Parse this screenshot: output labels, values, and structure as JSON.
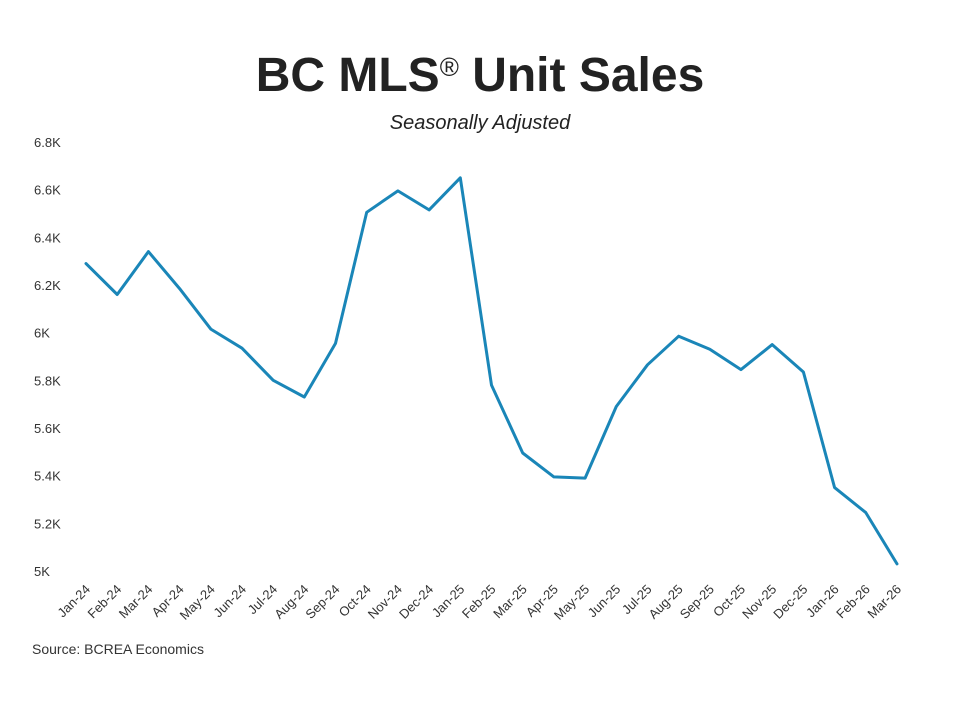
{
  "title_parts": {
    "pre": "BC MLS",
    "reg": "®",
    "post": " Unit Sales"
  },
  "subtitle": "Seasonally Adjusted",
  "source": "Source: BCREA Economics",
  "colors": {
    "line": "#1a86b8",
    "text": "#222222"
  },
  "chart_data": {
    "type": "line",
    "title": "BC MLS® Unit Sales",
    "subtitle": "Seasonally Adjusted",
    "xlabel": "",
    "ylabel": "",
    "grid": false,
    "ylim": [
      5000,
      6800
    ],
    "yticks": [
      5000,
      5200,
      5400,
      5600,
      5800,
      6000,
      6200,
      6400,
      6600,
      6800
    ],
    "ytick_labels": [
      "5K",
      "5.2K",
      "5.4K",
      "5.6K",
      "5.8K",
      "6K",
      "6.2K",
      "6.4K",
      "6.6K",
      "6.8K"
    ],
    "categories": [
      "Jan-24",
      "Feb-24",
      "Mar-24",
      "Apr-24",
      "May-24",
      "Jun-24",
      "Jul-24",
      "Aug-24",
      "Sep-24",
      "Oct-24",
      "Nov-24",
      "Dec-24",
      "Jan-25",
      "Feb-25",
      "Mar-25",
      "Apr-25",
      "May-25",
      "Jun-25",
      "Jul-25",
      "Aug-25",
      "Sep-25",
      "Oct-25",
      "Nov-25",
      "Dec-25",
      "Jan-26",
      "Feb-26",
      "Mar-26"
    ],
    "series": [
      {
        "name": "BC MLS® Unit Sales",
        "values": [
          6290,
          6160,
          6340,
          6185,
          6015,
          5935,
          5800,
          5730,
          5955,
          6505,
          6595,
          6515,
          6650,
          5780,
          5495,
          5395,
          5390,
          5690,
          5865,
          5985,
          5930,
          5845,
          5950,
          5835,
          5350,
          5245,
          5030
        ]
      }
    ],
    "source": "Source: BCREA Economics"
  }
}
